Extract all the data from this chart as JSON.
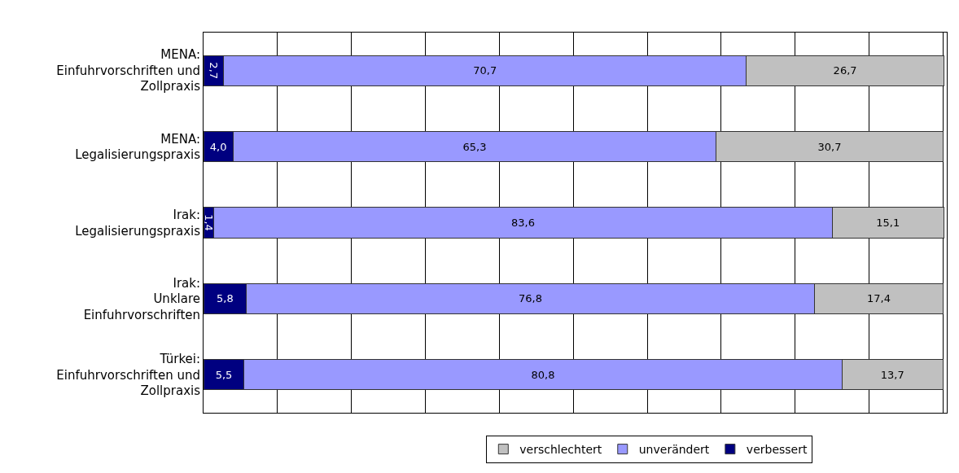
{
  "chart_data": {
    "type": "bar",
    "orientation": "horizontal",
    "stacked": true,
    "categories": [
      "MENA:\nEinfuhrvorschriften und\nZollpraxis",
      "MENA:\nLegalisierungspraxis",
      "Irak:\nLegalisierungspraxis",
      "Irak:\nUnklare\nEinfuhrvorschriften",
      "Türkei:\nEinfuhrvorschriften und\nZollpraxis"
    ],
    "series": [
      {
        "name": "verbessert",
        "color": "#000080",
        "values": [
          2.7,
          4.0,
          1.4,
          5.8,
          5.5
        ],
        "value_labels": [
          "2,7",
          "4,0",
          "1,4",
          "5,8",
          "5,5"
        ]
      },
      {
        "name": "unverändert",
        "color": "#9999ff",
        "values": [
          70.7,
          65.3,
          83.6,
          76.8,
          80.8
        ],
        "value_labels": [
          "70,7",
          "65,3",
          "83,6",
          "76,8",
          "80,8"
        ]
      },
      {
        "name": "verschlechtert",
        "color": "#c0c0c0",
        "values": [
          26.7,
          30.7,
          15.1,
          17.4,
          13.7
        ],
        "value_labels": [
          "26,7",
          "30,7",
          "15,1",
          "17,4",
          "13,7"
        ]
      }
    ],
    "xlim": [
      0,
      100.5
    ],
    "xticks": [
      {
        "value": 0,
        "label": null
      },
      {
        "value": 10,
        "label": null
      },
      {
        "value": 20,
        "label": null
      },
      {
        "value": 30,
        "label": null
      },
      {
        "value": 40,
        "label": null
      },
      {
        "value": 50,
        "label": null
      },
      {
        "value": 60,
        "label": null
      },
      {
        "value": 70,
        "label": null
      },
      {
        "value": 80,
        "label": null
      },
      {
        "value": 90,
        "label": null
      },
      {
        "value": 100,
        "label": null
      }
    ],
    "grid": "x",
    "tick_labels": "y",
    "legend": "bottom"
  }
}
